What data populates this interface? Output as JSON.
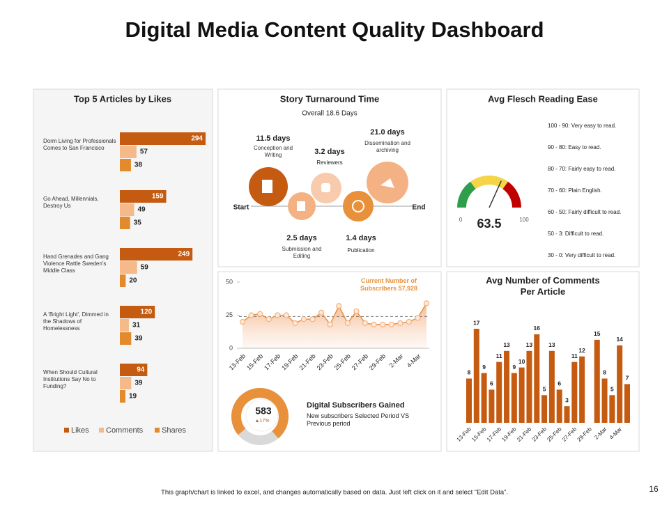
{
  "title": "Digital Media Content Quality Dashboard",
  "footer": "This graph/chart is linked to excel, and changes automatically based on data. Just left click on it and select “Edit Data”.",
  "page_number": "16",
  "turnaround": {
    "title": "Story Turnaround Time",
    "subtitle": "Overall 18.6 Days",
    "start": "Start",
    "end": "End",
    "stages": [
      {
        "duration": "11.5 days",
        "label": "Conception and Writing"
      },
      {
        "duration": "2.5 days",
        "label": "Submission and Editing"
      },
      {
        "duration": "3.2 days",
        "label": "Reviewers"
      },
      {
        "duration": "1.4 days",
        "label": "Publication"
      },
      {
        "duration": "21.0 days",
        "label": "Dissemination and archiving"
      }
    ]
  },
  "subscribers_gained": {
    "value": 583,
    "change": "▲17%",
    "title": "Digital Subscribers Gained",
    "description": "New subscribers Selected Period VS Previous period"
  },
  "chart_data": [
    {
      "type": "hbar",
      "title": "Top 5 Articles by Likes",
      "categories": [
        "Dorm Living for Professionals Comes to San Francisco",
        "Go Ahead, Millennials, Destroy Us",
        "Hand Grenades and Gang Violence Rattle Sweden’s Middle Class",
        "A ‘Bright Light’, Dimmed in the Shadows of Homelessness",
        "When Should Cultural Institutions Say No to Funding?"
      ],
      "series": [
        {
          "name": "Likes",
          "color": "#c55a11",
          "values": [
            294,
            159,
            249,
            120,
            94
          ]
        },
        {
          "name": "Comments",
          "color": "#f6b98a",
          "values": [
            57,
            49,
            59,
            31,
            39
          ]
        },
        {
          "name": "Shares",
          "color": "#e38b2c",
          "values": [
            38,
            35,
            20,
            39,
            19
          ]
        }
      ],
      "legend": "bottom"
    },
    {
      "type": "gauge",
      "title": "Avg Flesch Reading Ease",
      "value": 63.5,
      "min": 0,
      "max": 100,
      "notes": [
        "100 - 90: Very easy to read.",
        "90 - 80: Easy to read.",
        "80 - 70: Fairly easy to read.",
        "70 - 60: Plain English.",
        "60 - 50: Fairly difficult to read.",
        "50 - 3: Difficult to read.",
        "30 - 0: Very difficult to read."
      ]
    },
    {
      "type": "line",
      "categories": [
        "13-Feb",
        null,
        "15-Feb",
        null,
        "17-Feb",
        null,
        "19-Feb",
        null,
        "21-Feb",
        null,
        "23-Feb",
        null,
        "25-Feb",
        null,
        "27-Feb",
        null,
        "29-Feb",
        null,
        "2-Mar",
        null,
        "4-Mar",
        null
      ],
      "values": [
        20,
        25,
        26,
        22,
        25,
        25,
        19,
        22,
        22,
        27,
        18,
        32,
        19,
        28,
        19,
        18,
        18,
        18,
        19,
        20,
        23,
        34
      ],
      "ylim": [
        0,
        50
      ],
      "yticks": [
        0,
        25,
        50
      ],
      "reference_line": 24,
      "color": "#e8913a",
      "annotation": "Current Number of Subscribers 57,928"
    },
    {
      "type": "bar",
      "title": "Avg Number of Comments Per Article",
      "categories": [
        "13-Feb",
        null,
        "15-Feb",
        null,
        "17-Feb",
        null,
        "19-Feb",
        null,
        "21-Feb",
        null,
        "23-Feb",
        null,
        "25-Feb",
        null,
        "27-Feb",
        null,
        "29-Feb",
        null,
        "2-Mar",
        null,
        "4-Mar",
        null
      ],
      "values": [
        8,
        17,
        9,
        6,
        11,
        13,
        9,
        10,
        13,
        16,
        5,
        13,
        6,
        3,
        11,
        12,
        null,
        15,
        8,
        5,
        14,
        7
      ],
      "color": "#c55a11"
    }
  ]
}
